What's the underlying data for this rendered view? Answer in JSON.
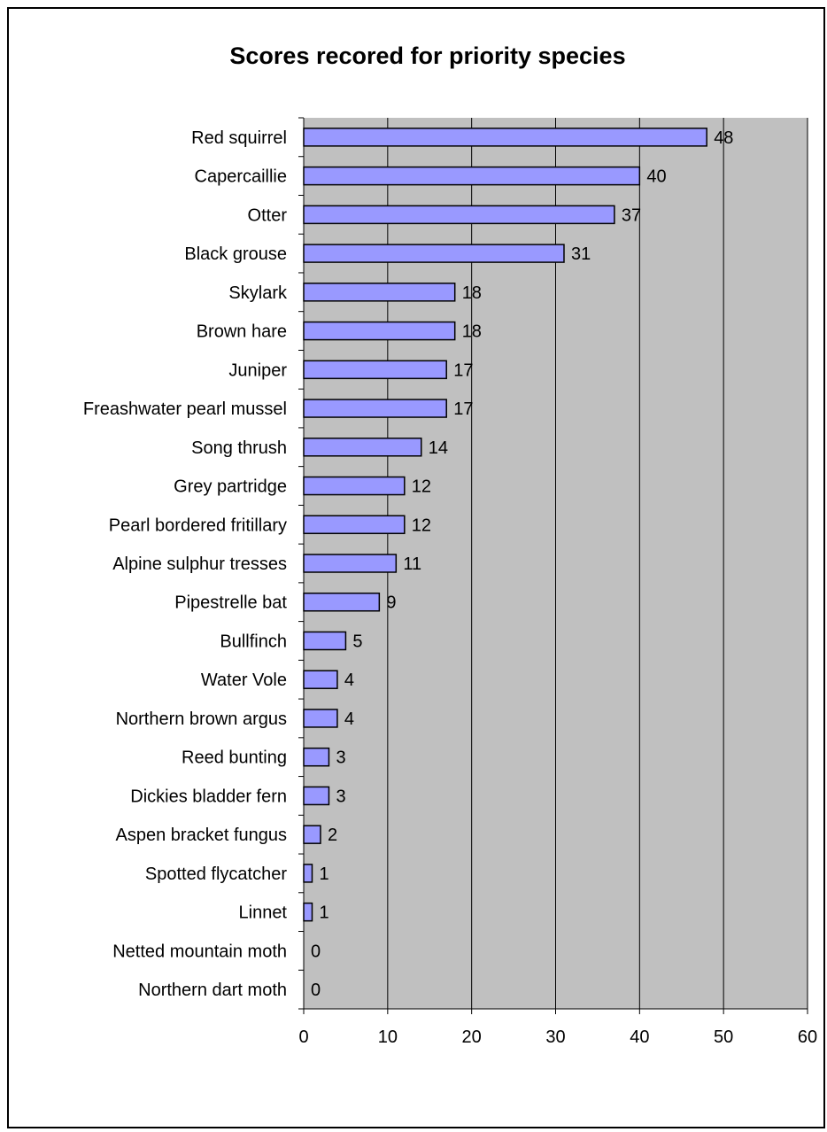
{
  "chart_data": {
    "type": "bar",
    "orientation": "horizontal",
    "title": "Scores recored for priority species",
    "xlabel": "",
    "ylabel": "",
    "xlim": [
      0,
      60
    ],
    "x_ticks": [
      "0",
      "10",
      "20",
      "30",
      "40",
      "50",
      "60"
    ],
    "grid": "vertical",
    "legend": "none",
    "categories": [
      "Red squirrel",
      "Capercaillie",
      "Otter",
      "Black grouse",
      "Skylark",
      "Brown hare",
      "Juniper",
      "Freashwater pearl mussel",
      "Song thrush",
      "Grey partridge",
      "Pearl bordered fritillary",
      "Alpine sulphur tresses",
      "Pipestrelle bat",
      "Bullfinch",
      "Water Vole",
      "Northern brown argus",
      "Reed bunting",
      "Dickies bladder fern",
      "Aspen bracket fungus",
      "Spotted flycatcher",
      "Linnet",
      "Netted mountain moth",
      "Northern dart moth"
    ],
    "values": [
      48,
      40,
      37,
      31,
      18,
      18,
      17,
      17,
      14,
      12,
      12,
      11,
      9,
      5,
      4,
      4,
      3,
      3,
      2,
      1,
      1,
      0,
      0
    ],
    "colors": {
      "bar": "#9999ff",
      "plot_background": "#c0c0c0",
      "border": "#000000"
    }
  }
}
